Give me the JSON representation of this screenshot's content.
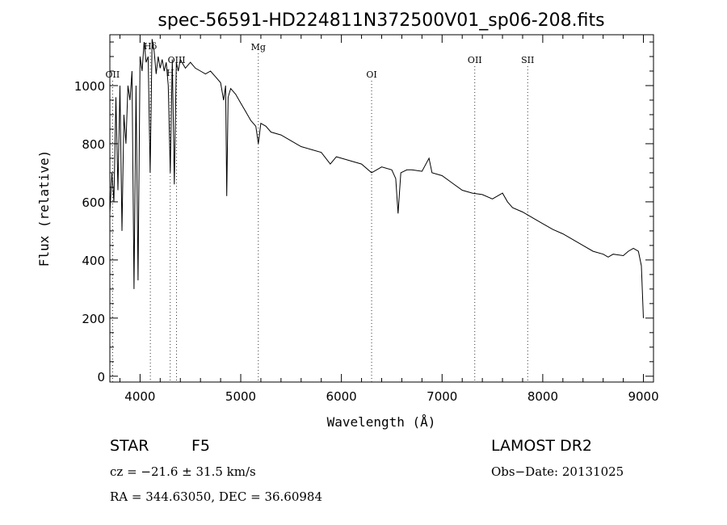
{
  "chart_data": {
    "type": "line",
    "title": "spec-56591-HD224811N372500V01_sp06-208.fits",
    "xlabel": "Wavelength (Å)",
    "ylabel": "Flux (relative)",
    "xlim": [
      3700,
      9100
    ],
    "ylim": [
      -20,
      1175
    ],
    "x_ticks": [
      4000,
      5000,
      6000,
      7000,
      8000,
      9000
    ],
    "y_ticks": [
      0,
      200,
      400,
      600,
      800,
      1000
    ],
    "grid": false,
    "spectral_lines": [
      {
        "label": "OII",
        "wavelength": 3727
      },
      {
        "label": "Hδ",
        "wavelength": 4102
      },
      {
        "label": "H",
        "wavelength": 4300
      },
      {
        "label": "OIII",
        "wavelength": 4363
      },
      {
        "label": "Mg",
        "wavelength": 5175
      },
      {
        "label": "OI",
        "wavelength": 6300
      },
      {
        "label": "OII",
        "wavelength": 7325
      },
      {
        "label": "SII",
        "wavelength": 7850
      }
    ],
    "series": [
      {
        "x": [
          3700,
          3720,
          3740,
          3760,
          3780,
          3800,
          3820,
          3840,
          3860,
          3880,
          3900,
          3920,
          3940,
          3960,
          3980,
          4000,
          4020,
          4040,
          4060,
          4080,
          4100,
          4120,
          4140,
          4160,
          4180,
          4200,
          4220,
          4240,
          4260,
          4280,
          4300,
          4320,
          4340,
          4360,
          4380,
          4400,
          4450,
          4500,
          4550,
          4600,
          4650,
          4700,
          4750,
          4800,
          4830,
          4850,
          4861,
          4875,
          4900,
          4950,
          5000,
          5050,
          5100,
          5150,
          5175,
          5200,
          5250,
          5300,
          5400,
          5500,
          5600,
          5700,
          5800,
          5890,
          5950,
          6000,
          6100,
          6200,
          6300,
          6400,
          6500,
          6540,
          6563,
          6590,
          6650,
          6700,
          6800,
          6870,
          6900,
          7000,
          7100,
          7200,
          7300,
          7400,
          7500,
          7600,
          7650,
          7700,
          7800,
          7900,
          8000,
          8100,
          8200,
          8300,
          8400,
          8500,
          8600,
          8650,
          8700,
          8800,
          8850,
          8900,
          8950,
          8980,
          9000
        ],
        "y": [
          560,
          700,
          600,
          960,
          640,
          1000,
          500,
          900,
          800,
          1000,
          950,
          1050,
          300,
          1000,
          330,
          1100,
          1050,
          1150,
          1080,
          1100,
          700,
          1160,
          1120,
          1040,
          1100,
          1060,
          1090,
          1050,
          1080,
          1000,
          700,
          1090,
          660,
          1080,
          1050,
          1090,
          1060,
          1080,
          1060,
          1050,
          1040,
          1050,
          1030,
          1010,
          950,
          1000,
          620,
          960,
          990,
          970,
          940,
          910,
          880,
          860,
          800,
          870,
          860,
          840,
          830,
          810,
          790,
          780,
          770,
          730,
          755,
          750,
          740,
          730,
          700,
          720,
          710,
          680,
          560,
          700,
          710,
          710,
          705,
          750,
          700,
          690,
          665,
          640,
          630,
          625,
          610,
          630,
          600,
          580,
          565,
          545,
          525,
          505,
          490,
          470,
          450,
          430,
          420,
          410,
          420,
          415,
          430,
          440,
          430,
          380,
          200
        ]
      }
    ]
  },
  "info": {
    "object_type": "STAR",
    "subclass": "F5",
    "cz": "cz = −21.6 ± 31.5 km/s",
    "coords": "RA = 344.63050, DEC =  36.60984",
    "survey": "LAMOST DR2",
    "obs_date": "Obs−Date: 20131025"
  }
}
